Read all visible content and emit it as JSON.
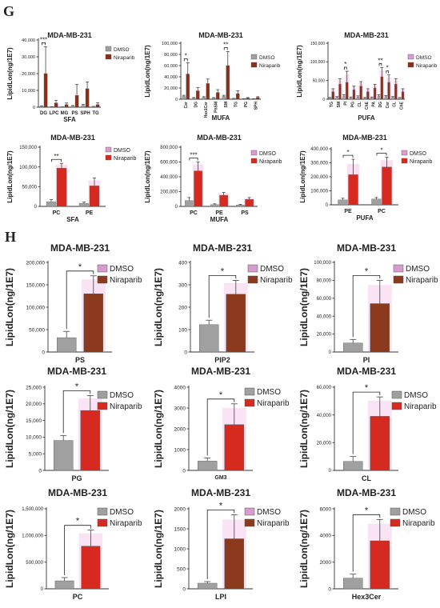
{
  "panel_labels": {
    "g": "G",
    "h": "H"
  },
  "colors": {
    "dmso": "#a0a0a0",
    "niraparib_g1": "#8b2e1a",
    "niraparib_red": "#d62a20",
    "niraparib_brown": "#8b3a1e",
    "pink": "#e78fd2"
  },
  "chart_data": [
    {
      "id": "g1",
      "type": "bar",
      "title": "MDA-MB-231",
      "ylabel": "LipidLon(ng/1E7)",
      "xlabel": "SFA",
      "categories": [
        "DG",
        "LPC",
        "MG",
        "PS",
        "SPH",
        "TG"
      ],
      "ylim": [
        0,
        40000
      ],
      "yticks": [
        0,
        10000,
        20000,
        30000,
        40000
      ],
      "ytick_labels": [
        "0",
        "10,000",
        "20,000",
        "30,000",
        "40,000"
      ],
      "series": [
        {
          "name": "DMSO",
          "values": [
            500,
            200,
            150,
            600,
            1000,
            300
          ],
          "err": [
            300,
            100,
            80,
            400,
            600,
            200
          ]
        },
        {
          "name": "Niraparib",
          "values": [
            20000,
            2500,
            1500,
            7000,
            11000,
            1500
          ],
          "err": [
            16000,
            1500,
            1000,
            6500,
            4000,
            1200
          ]
        }
      ],
      "sig": [
        {
          "cat": 0,
          "label": "***"
        }
      ],
      "legend": "top-right",
      "niraparib_color": "#8b2e1a",
      "pink": false
    },
    {
      "id": "g2",
      "type": "bar",
      "title": "MDA-MB-231",
      "ylabel": "LipidLon(ng/1E7)",
      "xlabel": "MUFA",
      "categories": [
        "Cer",
        "DG",
        "Hex1Cer",
        "PhSM",
        "SM",
        "TG",
        "PG",
        "SPH"
      ],
      "ylim": [
        0,
        100000
      ],
      "yticks": [
        0,
        20000,
        40000,
        60000,
        80000,
        100000
      ],
      "ytick_labels": [
        "0",
        "20,000",
        "40,000",
        "60,000",
        "80,000",
        "100,000"
      ],
      "series": [
        {
          "name": "DMSO",
          "values": [
            5000,
            2000,
            3000,
            2000,
            5000,
            1000,
            500,
            500
          ],
          "err": [
            2000,
            1000,
            1500,
            800,
            2000,
            500,
            300,
            300
          ]
        },
        {
          "name": "Niraparib",
          "values": [
            45000,
            15000,
            28000,
            12000,
            60000,
            10000,
            2000,
            3000
          ],
          "err": [
            20000,
            6000,
            8000,
            5000,
            25000,
            5000,
            1000,
            1500
          ]
        }
      ],
      "sig": [
        {
          "cat": 0,
          "label": "*"
        },
        {
          "cat": 4,
          "label": "**"
        }
      ],
      "legend": "top-right",
      "niraparib_color": "#8b2e1a",
      "pink": false
    },
    {
      "id": "g3",
      "type": "bar",
      "title": "MDA-MB-231",
      "ylabel": "LipidLon(ng/1E7)",
      "xlabel": "PUFA",
      "categories": [
        "TG",
        "SM",
        "PI",
        "PG",
        "CL",
        "ChE",
        "PA",
        "DG",
        "Cer",
        "CL",
        "ChE"
      ],
      "ylim": [
        0,
        150000
      ],
      "yticks": [
        0,
        50000,
        100000,
        150000
      ],
      "ytick_labels": [
        "0",
        "50,000",
        "100,000",
        "150,000"
      ],
      "series": [
        {
          "name": "DMSO",
          "values": [
            3000,
            5000,
            8000,
            4000,
            6000,
            3000,
            4000,
            8000,
            7000,
            5000,
            3000
          ],
          "err": [
            1500,
            2000,
            4000,
            2000,
            3000,
            1500,
            2000,
            4000,
            3000,
            2000,
            1500
          ]
        },
        {
          "name": "Niraparib",
          "values": [
            20000,
            40000,
            45000,
            25000,
            35000,
            20000,
            30000,
            60000,
            45000,
            40000,
            20000
          ],
          "err": [
            8000,
            15000,
            30000,
            10000,
            12000,
            8000,
            10000,
            25000,
            20000,
            15000,
            8000
          ]
        }
      ],
      "sig": [
        {
          "cat": 2,
          "label": "*"
        },
        {
          "cat": 7,
          "label": "**"
        },
        {
          "cat": 8,
          "label": "*"
        }
      ],
      "legend": "top-right",
      "niraparib_color": "#8b2e1a",
      "pink": true
    },
    {
      "id": "g4",
      "type": "bar",
      "title": "MDA-MB-231",
      "ylabel": "LipidLon(ng/1E7)",
      "xlabel": "SFA",
      "categories": [
        "PC",
        "PE"
      ],
      "ylim": [
        0,
        150000
      ],
      "yticks": [
        0,
        50000,
        100000,
        150000
      ],
      "ytick_labels": [
        "0",
        "50,000",
        "100,000",
        "150,000"
      ],
      "series": [
        {
          "name": "DMSO",
          "values": [
            12000,
            8000
          ],
          "err": [
            5000,
            3000
          ]
        },
        {
          "name": "Niraparib",
          "values": [
            97000,
            52000
          ],
          "err": [
            12000,
            20000
          ]
        }
      ],
      "sig": [
        {
          "cat": 0,
          "label": "**"
        }
      ],
      "legend": "top-right",
      "niraparib_color": "#d62a20",
      "pink": true
    },
    {
      "id": "g5",
      "type": "bar",
      "title": "MDA-MB-231",
      "ylabel": "LipidLon(ng/1E7)",
      "xlabel": "MUFA",
      "categories": [
        "PC",
        "PE",
        "PS"
      ],
      "ylim": [
        0,
        800000
      ],
      "yticks": [
        0,
        200000,
        400000,
        600000,
        800000
      ],
      "ytick_labels": [
        "0",
        "200,000",
        "400,000",
        "600,000",
        "800,000"
      ],
      "series": [
        {
          "name": "DMSO",
          "values": [
            80000,
            25000,
            20000
          ],
          "err": [
            40000,
            10000,
            8000
          ]
        },
        {
          "name": "Niraparib",
          "values": [
            480000,
            150000,
            95000
          ],
          "err": [
            120000,
            40000,
            25000
          ]
        }
      ],
      "sig": [
        {
          "cat": 0,
          "label": "***"
        }
      ],
      "legend": "top-right",
      "niraparib_color": "#d62a20",
      "pink": true
    },
    {
      "id": "g6",
      "type": "bar",
      "title": "MDA-MB-231",
      "ylabel": "LipidLon(ng/1E7)",
      "xlabel": "PUFA",
      "categories": [
        "PE",
        "PC"
      ],
      "ylim": [
        0,
        400000
      ],
      "yticks": [
        0,
        100000,
        200000,
        300000,
        400000
      ],
      "ytick_labels": [
        "0",
        "100,000",
        "200,000",
        "300,000",
        "400,000"
      ],
      "series": [
        {
          "name": "DMSO",
          "values": [
            35000,
            42000
          ],
          "err": [
            12000,
            10000
          ]
        },
        {
          "name": "Niraparib",
          "values": [
            215000,
            270000
          ],
          "err": [
            110000,
            70000
          ]
        }
      ],
      "sig": [
        {
          "cat": 0,
          "label": "*"
        },
        {
          "cat": 1,
          "label": "*"
        }
      ],
      "legend": "top-right",
      "niraparib_color": "#d62a20",
      "pink": true
    },
    {
      "id": "h1",
      "type": "bar",
      "title": "MDA-MB-231",
      "ylabel": "LipidLon(ng/1E7)",
      "xlabel": "PS",
      "ylim": [
        0,
        200000
      ],
      "yticks": [
        0,
        50000,
        100000,
        150000,
        200000
      ],
      "ytick_labels": [
        "0",
        "50,000",
        "100,000",
        "150,000",
        "200,000"
      ],
      "series": [
        {
          "name": "DMSO",
          "values": [
            32000
          ],
          "err": [
            14000
          ]
        },
        {
          "name": "Niraparib",
          "values": [
            130000
          ],
          "err": [
            40000
          ]
        }
      ],
      "sig_label": "*",
      "legend_style": "brown",
      "niraparib_color": "#8b3a1e"
    },
    {
      "id": "h2",
      "type": "bar",
      "title": "MDA-MB-231",
      "ylabel": "LipidLon(ng/1E7)",
      "xlabel": "PIP2",
      "ylim": [
        0,
        400
      ],
      "yticks": [
        0,
        100,
        200,
        300,
        400
      ],
      "ytick_labels": [
        "0",
        "100",
        "200",
        "300",
        "400"
      ],
      "series": [
        {
          "name": "DMSO",
          "values": [
            122
          ],
          "err": [
            20
          ]
        },
        {
          "name": "Niraparib",
          "values": [
            258
          ],
          "err": [
            62
          ]
        }
      ],
      "sig_label": "*",
      "legend_style": "brown",
      "niraparib_color": "#8b3a1e"
    },
    {
      "id": "h3",
      "type": "bar",
      "title": "MDA-MB-231",
      "ylabel": "LipidLon(ng/1E7)",
      "xlabel": "PI",
      "ylim": [
        0,
        100000
      ],
      "yticks": [
        0,
        20000,
        40000,
        60000,
        80000,
        100000
      ],
      "ytick_labels": [
        "0",
        "20,000",
        "40,000",
        "60,000",
        "80,000",
        "100,000"
      ],
      "series": [
        {
          "name": "DMSO",
          "values": [
            10000
          ],
          "err": [
            4000
          ]
        },
        {
          "name": "Niraparib",
          "values": [
            54000
          ],
          "err": [
            26000
          ]
        }
      ],
      "sig_label": "*",
      "legend_style": "brown",
      "niraparib_color": "#8b3a1e"
    },
    {
      "id": "h4",
      "type": "bar",
      "title": "MDA-MB-231",
      "ylabel": "LipidLon(ng/1E7)",
      "xlabel": "PG",
      "ylim": [
        0,
        25000
      ],
      "yticks": [
        0,
        5000,
        10000,
        15000,
        20000,
        25000
      ],
      "ytick_labels": [
        "0",
        "5,000",
        "10,000",
        "15,000",
        "20,000",
        "25,000"
      ],
      "series": [
        {
          "name": "DMSO",
          "values": [
            9000
          ],
          "err": [
            1500
          ]
        },
        {
          "name": "Niraparib",
          "values": [
            18000
          ],
          "err": [
            4500
          ]
        }
      ],
      "sig_label": "*",
      "legend_style": "red",
      "niraparib_color": "#d62a20"
    },
    {
      "id": "h5",
      "type": "bar",
      "title": "MDA-MB-231",
      "ylabel": "LipidLon(ng/1E7)",
      "xlabel": "GM3",
      "ylim": [
        0,
        4000
      ],
      "yticks": [
        0,
        1000,
        2000,
        3000,
        4000
      ],
      "ytick_labels": [
        "0",
        "1000",
        "2000",
        "3000",
        "4000"
      ],
      "series": [
        {
          "name": "DMSO",
          "values": [
            450
          ],
          "err": [
            150
          ]
        },
        {
          "name": "Niraparib",
          "values": [
            2200
          ],
          "err": [
            1000
          ]
        }
      ],
      "sig_label": "*",
      "legend_style": "red",
      "niraparib_color": "#d62a20"
    },
    {
      "id": "h6",
      "type": "bar",
      "title": "MDA-MB-231",
      "ylabel": "LipidLon(ng/1E7)",
      "xlabel": "CL",
      "ylim": [
        0,
        60000
      ],
      "yticks": [
        0,
        20000,
        40000,
        60000
      ],
      "ytick_labels": [
        "0",
        "20,000",
        "40,000",
        "60,000"
      ],
      "series": [
        {
          "name": "DMSO",
          "values": [
            6500
          ],
          "err": [
            3500
          ]
        },
        {
          "name": "Niraparib",
          "values": [
            39000
          ],
          "err": [
            14000
          ]
        }
      ],
      "sig_label": "*",
      "legend_style": "red",
      "niraparib_color": "#d62a20"
    },
    {
      "id": "h7",
      "type": "bar",
      "title": "MDA-MB-231",
      "ylabel": "LipidLon(ng/1E7)",
      "xlabel": "PC",
      "ylim": [
        0,
        1500000
      ],
      "yticks": [
        0,
        500000,
        1000000,
        1500000
      ],
      "ytick_labels": [
        "0",
        "500,000",
        "1,000,000",
        "1,500,000"
      ],
      "series": [
        {
          "name": "DMSO",
          "values": [
            150000
          ],
          "err": [
            60000
          ]
        },
        {
          "name": "Niraparib",
          "values": [
            800000
          ],
          "err": [
            300000
          ]
        }
      ],
      "sig_label": "*",
      "legend_style": "red",
      "niraparib_color": "#d62a20"
    },
    {
      "id": "h8",
      "type": "bar",
      "title": "MDA-MB-231",
      "ylabel": "LipidLon(ng/1E7)",
      "xlabel": "LPI",
      "ylim": [
        0,
        2000
      ],
      "yticks": [
        0,
        500,
        1000,
        1500,
        2000
      ],
      "ytick_labels": [
        "0",
        "500",
        "1000",
        "1500",
        "2000"
      ],
      "series": [
        {
          "name": "DMSO",
          "values": [
            140
          ],
          "err": [
            40
          ]
        },
        {
          "name": "Niraparib",
          "values": [
            1250
          ],
          "err": [
            600
          ]
        }
      ],
      "sig_label": "*",
      "legend_style": "brown",
      "niraparib_color": "#8b3a1e"
    },
    {
      "id": "h9",
      "type": "bar",
      "title": "MDA-MB-231",
      "ylabel": "LipidLon(ng/1E7)",
      "xlabel": "Hex3Cer",
      "ylim": [
        0,
        6000
      ],
      "yticks": [
        0,
        2000,
        4000,
        6000
      ],
      "ytick_labels": [
        "0",
        "2000",
        "4000",
        "6000"
      ],
      "series": [
        {
          "name": "DMSO",
          "values": [
            800
          ],
          "err": [
            300
          ]
        },
        {
          "name": "Niraparib",
          "values": [
            3600
          ],
          "err": [
            1600
          ]
        }
      ],
      "sig_label": "*",
      "legend_style": "red",
      "niraparib_color": "#d62a20"
    }
  ]
}
